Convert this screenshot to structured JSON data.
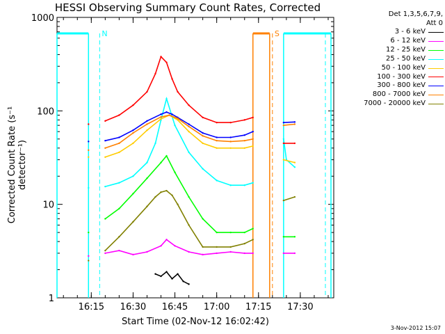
{
  "chart_data": {
    "type": "line",
    "title": "HESSI Observing Summary Count Rates, Corrected",
    "xlabel": "Start Time (02-Nov-12 16:02:42)",
    "ylabel": "Corrected Count Rate (s⁻¹ detector⁻¹)",
    "yscale": "log",
    "ylim": [
      1,
      1000
    ],
    "xlim": [
      "16:02:42",
      "17:42"
    ],
    "x_ticks": [
      "16:15",
      "16:30",
      "16:45",
      "17:00",
      "17:15",
      "17:30"
    ],
    "y_ticks": [
      "1",
      "10",
      "100",
      "1000"
    ],
    "detectors": "Det 1,3,5,6,7,9,",
    "attenuator": "Att 0",
    "timestamp": "3-Nov-2012 15:07",
    "flags": [
      {
        "label": "N",
        "color": "#00ffff",
        "start": "16:02:42",
        "end": "16:14",
        "dashed_at": "16:18"
      },
      {
        "label": "S",
        "color": "#ff8000",
        "start": "17:13",
        "end": "17:19",
        "dashed_at": "17:20"
      },
      {
        "label": "",
        "color": "#00ffff",
        "start": "17:24",
        "end": "17:41",
        "dashed_at": "17:39"
      }
    ],
    "series": [
      {
        "name": "3 - 6 keV",
        "color": "#000000",
        "times": [
          "16:38",
          "16:40",
          "16:42",
          "16:44",
          "16:46",
          "16:48",
          "16:50"
        ],
        "values": [
          1.8,
          1.7,
          1.9,
          1.6,
          1.8,
          1.5,
          1.4
        ]
      },
      {
        "name": "6 - 12 keV",
        "color": "#ff00ff",
        "times": [
          "16:14",
          "16:20",
          "16:25",
          "16:30",
          "16:35",
          "16:40",
          "16:42",
          "16:45",
          "16:50",
          "16:55",
          "17:00",
          "17:05",
          "17:10",
          "17:13",
          "17:24",
          "17:28"
        ],
        "values": [
          2.8,
          3.0,
          3.2,
          2.9,
          3.1,
          3.6,
          4.2,
          3.6,
          3.1,
          2.9,
          3.0,
          3.1,
          3.0,
          3.0,
          3.0,
          3.0
        ]
      },
      {
        "name": "12 - 25 keV",
        "color": "#00ff00",
        "times": [
          "16:14",
          "16:20",
          "16:25",
          "16:30",
          "16:35",
          "16:40",
          "16:42",
          "16:45",
          "16:50",
          "16:55",
          "17:00",
          "17:05",
          "17:10",
          "17:13",
          "17:24",
          "17:28"
        ],
        "values": [
          5,
          7,
          9,
          13,
          19,
          28,
          33,
          22,
          12,
          7,
          5,
          5,
          5,
          5.5,
          4.5,
          4.5
        ]
      },
      {
        "name": "25 - 50 keV",
        "color": "#00ffff",
        "times": [
          "16:14",
          "16:20",
          "16:25",
          "16:30",
          "16:35",
          "16:38",
          "16:40",
          "16:42",
          "16:45",
          "16:50",
          "16:55",
          "17:00",
          "17:05",
          "17:10",
          "17:13",
          "17:24",
          "17:25",
          "17:28"
        ],
        "values": [
          15,
          15.5,
          17,
          20,
          28,
          45,
          80,
          135,
          70,
          36,
          24,
          18,
          16,
          16,
          17,
          50,
          30,
          25
        ]
      },
      {
        "name": "50 - 100 keV",
        "color": "#ffcc00",
        "times": [
          "16:14",
          "16:20",
          "16:25",
          "16:30",
          "16:35",
          "16:40",
          "16:43",
          "16:46",
          "16:50",
          "16:55",
          "17:00",
          "17:05",
          "17:10",
          "17:13",
          "17:24",
          "17:28"
        ],
        "values": [
          32,
          32,
          36,
          45,
          62,
          82,
          90,
          80,
          60,
          45,
          40,
          40,
          40,
          42,
          30,
          28
        ]
      },
      {
        "name": "100 - 300 keV",
        "color": "#ff0000",
        "times": [
          "16:14",
          "16:20",
          "16:25",
          "16:30",
          "16:35",
          "16:38",
          "16:40",
          "16:42",
          "16:44",
          "16:46",
          "16:50",
          "16:55",
          "17:00",
          "17:05",
          "17:10",
          "17:13",
          "17:24",
          "17:28"
        ],
        "values": [
          72,
          78,
          90,
          115,
          160,
          250,
          380,
          330,
          220,
          160,
          115,
          85,
          75,
          75,
          80,
          85,
          45,
          45
        ]
      },
      {
        "name": "300 - 800 keV",
        "color": "#0000ff",
        "times": [
          "16:14",
          "16:20",
          "16:25",
          "16:30",
          "16:35",
          "16:40",
          "16:42",
          "16:44",
          "16:46",
          "16:50",
          "16:55",
          "17:00",
          "17:05",
          "17:10",
          "17:13",
          "17:24",
          "17:28"
        ],
        "values": [
          47,
          48,
          52,
          62,
          78,
          92,
          97,
          92,
          85,
          72,
          58,
          52,
          52,
          55,
          60,
          75,
          76
        ]
      },
      {
        "name": "800 - 7000 keV",
        "color": "#ff8000",
        "times": [
          "16:14",
          "16:20",
          "16:25",
          "16:30",
          "16:35",
          "16:40",
          "16:43",
          "16:46",
          "16:50",
          "16:55",
          "17:00",
          "17:05",
          "17:10",
          "17:13",
          "17:24",
          "17:28"
        ],
        "values": [
          38,
          40,
          45,
          58,
          72,
          86,
          90,
          83,
          68,
          54,
          48,
          47,
          48,
          50,
          70,
          72
        ]
      },
      {
        "name": "7000 - 20000 keV",
        "color": "#808000",
        "times": [
          "16:14",
          "16:20",
          "16:25",
          "16:30",
          "16:35",
          "16:38",
          "16:40",
          "16:42",
          "16:44",
          "16:46",
          "16:50",
          "16:55",
          "17:00",
          "17:05",
          "17:10",
          "17:13",
          "17:24",
          "17:28"
        ],
        "values": [
          2.5,
          3.2,
          4.5,
          6.5,
          9.5,
          12,
          13.5,
          14,
          12.5,
          10,
          6,
          3.5,
          3.5,
          3.5,
          3.8,
          4.2,
          11,
          12
        ]
      }
    ]
  }
}
